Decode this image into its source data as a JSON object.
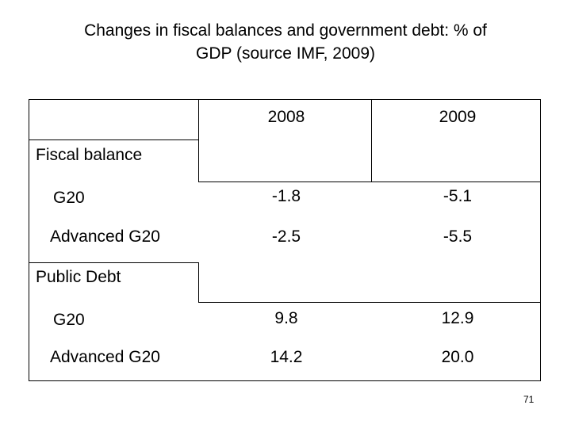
{
  "title": {
    "line1": "Changes in fiscal balances and government debt: % of",
    "line2": "GDP (source IMF, 2009)"
  },
  "table": {
    "columns": [
      "2008",
      "2009"
    ],
    "sections": [
      {
        "heading": "Fiscal balance",
        "rows": [
          {
            "label": "G20",
            "values": [
              "-1.8",
              "-5.1"
            ]
          },
          {
            "label": "Advanced G20",
            "values": [
              "-2.5",
              "-5.5"
            ]
          }
        ]
      },
      {
        "heading": "Public Debt",
        "rows": [
          {
            "label": "G20",
            "values": [
              "9.8",
              "12.9"
            ]
          },
          {
            "label": "Advanced G20",
            "values": [
              "14.2",
              "20.0"
            ]
          }
        ]
      }
    ]
  },
  "page_number": "71"
}
